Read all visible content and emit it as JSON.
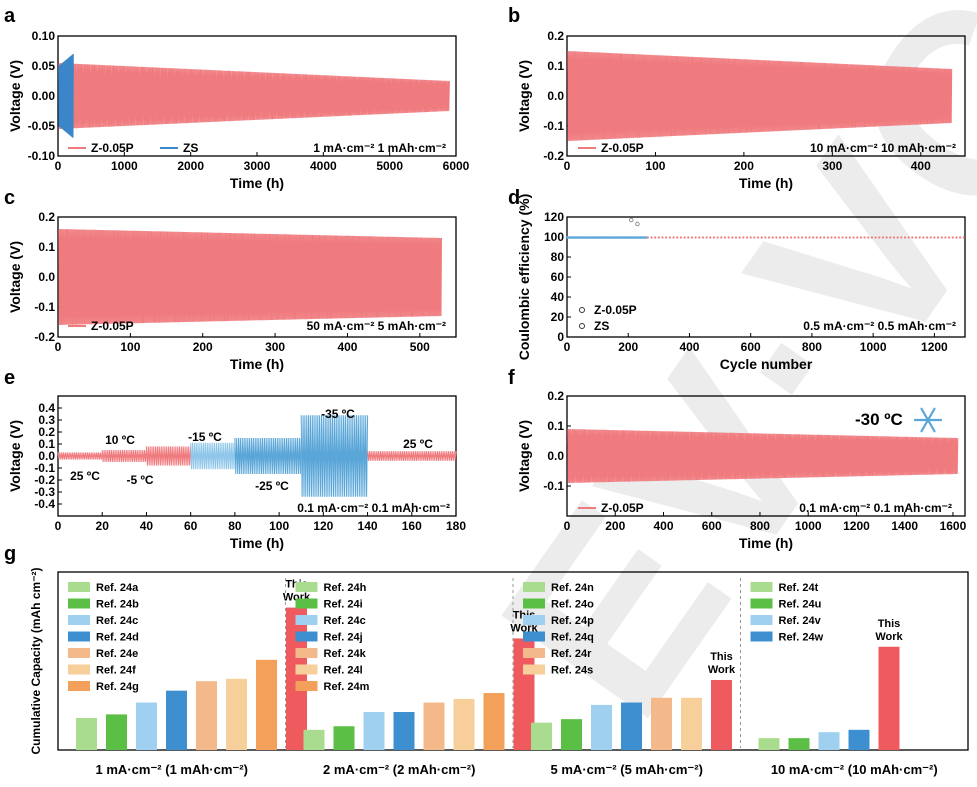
{
  "colors": {
    "red": "#f07b7f",
    "blue": "#5aa6d8",
    "dark_blue": "#3b86c8",
    "black": "#000000"
  },
  "watermark": "EV·VCH",
  "panels": {
    "a": {
      "letter": "a",
      "chart_data": {
        "type": "line",
        "xlabel": "Time (h)",
        "ylabel": "Voltage (V)",
        "xlim": [
          0,
          6000
        ],
        "ylim": [
          -0.1,
          0.1
        ],
        "xticks": [
          "0",
          "1000",
          "2000",
          "3000",
          "4000",
          "5000",
          "6000"
        ],
        "yticks": [
          "-0.10",
          "-0.05",
          "0.00",
          "0.05",
          "0.10"
        ],
        "series": [
          {
            "name": "Z-0.05P",
            "color": "#f07b7f",
            "x_end": 5900,
            "amp_start": 0.055,
            "amp_end": 0.025
          },
          {
            "name": "ZS",
            "color": "#3b86c8",
            "x_end": 230,
            "amp_start": 0.05,
            "amp_end": 0.07
          }
        ],
        "condition": "1 mA·cm⁻² 1 mAh·cm⁻²"
      }
    },
    "b": {
      "letter": "b",
      "chart_data": {
        "type": "line",
        "xlabel": "Time (h)",
        "ylabel": "Voltage (V)",
        "xlim": [
          0,
          450
        ],
        "ylim": [
          -0.2,
          0.2
        ],
        "xticks": [
          "0",
          "100",
          "200",
          "300",
          "400"
        ],
        "yticks": [
          "-0.2",
          "-0.1",
          "0.0",
          "0.1",
          "0.2"
        ],
        "series": [
          {
            "name": "Z-0.05P",
            "color": "#f07b7f",
            "x_end": 435,
            "amp_start": 0.15,
            "amp_end": 0.09
          }
        ],
        "condition": "10 mA·cm⁻² 10 mAh·cm⁻²"
      }
    },
    "c": {
      "letter": "c",
      "chart_data": {
        "type": "line",
        "xlabel": "Time (h)",
        "ylabel": "Voltage (V)",
        "xlim": [
          0,
          550
        ],
        "ylim": [
          -0.2,
          0.2
        ],
        "xticks": [
          "0",
          "100",
          "200",
          "300",
          "400",
          "500"
        ],
        "yticks": [
          "-0.2",
          "-0.1",
          "0.0",
          "0.1",
          "0.2"
        ],
        "series": [
          {
            "name": "Z-0.05P",
            "color": "#f07b7f",
            "x_end": 530,
            "amp_start": 0.16,
            "amp_end": 0.13
          }
        ],
        "condition": "50 mA·cm⁻² 5 mAh·cm⁻²"
      }
    },
    "d": {
      "letter": "d",
      "chart_data": {
        "type": "scatter",
        "xlabel": "Cycle number",
        "ylabel": "Coulombic efficiency (%)",
        "xlim": [
          0,
          1300
        ],
        "ylim": [
          0,
          120
        ],
        "xticks": [
          "0",
          "200",
          "400",
          "600",
          "800",
          "1000",
          "1200"
        ],
        "yticks": [
          "0",
          "20",
          "40",
          "60",
          "80",
          "100",
          "120"
        ],
        "series": [
          {
            "name": "Z-0.05P",
            "color": "#f07b7f",
            "x_end": 1300,
            "value": 99.5
          },
          {
            "name": "ZS",
            "color": "#5aa6d8",
            "x_end": 260,
            "value": 99.5
          }
        ],
        "outliers": [
          {
            "x": 210,
            "y": 117
          },
          {
            "x": 230,
            "y": 113
          }
        ],
        "condition": "0.5 mA·cm⁻² 0.5 mAh·cm⁻²"
      }
    },
    "e": {
      "letter": "e",
      "chart_data": {
        "type": "line",
        "xlabel": "Time (h)",
        "ylabel": "Voltage (V)",
        "xlim": [
          0,
          180
        ],
        "ylim": [
          -0.5,
          0.5
        ],
        "xticks": [
          "0",
          "20",
          "40",
          "60",
          "80",
          "100",
          "120",
          "140",
          "160",
          "180"
        ],
        "yticks": [
          "-0.4",
          "-0.3",
          "-0.2",
          "-0.1",
          "0.0",
          "0.1",
          "0.2",
          "0.3",
          "0.4"
        ],
        "segments": [
          {
            "label": "25 ºC",
            "x0": 0,
            "x1": 20,
            "amp": 0.03,
            "color": "#f07b7f"
          },
          {
            "label": "10 ºC",
            "x0": 20,
            "x1": 40,
            "amp": 0.05,
            "color": "#f07b7f"
          },
          {
            "label": "-5 ºC",
            "x0": 40,
            "x1": 60,
            "amp": 0.08,
            "color": "#f07b7f"
          },
          {
            "label": "-15 ºC",
            "x0": 60,
            "x1": 80,
            "amp": 0.11,
            "color": "#8fc6ea"
          },
          {
            "label": "-25 ºC",
            "x0": 80,
            "x1": 110,
            "amp": 0.15,
            "color": "#5aa6d8"
          },
          {
            "label": "-35 ºC",
            "x0": 110,
            "x1": 140,
            "amp": 0.34,
            "color": "#5aa6d8"
          },
          {
            "label": "25 ºC",
            "x0": 140,
            "x1": 180,
            "amp": 0.04,
            "color": "#f07b7f"
          }
        ],
        "condition": "0.1 mA·cm⁻² 0.1 mAh·cm⁻²"
      }
    },
    "f": {
      "letter": "f",
      "chart_data": {
        "type": "line",
        "xlabel": "Time (h)",
        "ylabel": "Voltage (V)",
        "xlim": [
          0,
          1650
        ],
        "ylim": [
          -0.2,
          0.2
        ],
        "xticks": [
          "0",
          "200",
          "400",
          "600",
          "800",
          "1000",
          "1200",
          "1400",
          "1600"
        ],
        "yticks": [
          "-0.1",
          "0.0",
          "0.1",
          "0.2"
        ],
        "series": [
          {
            "name": "Z-0.05P",
            "color": "#f07b7f",
            "x_end": 1620,
            "amp_start": 0.09,
            "amp_end": 0.06
          }
        ],
        "temperature": "-30 ºC",
        "condition": "0.1 mA·cm⁻² 0.1 mAh·cm⁻²"
      }
    },
    "g": {
      "letter": "g",
      "chart_data": {
        "type": "bar",
        "ylabel": "Cumulative Capacity (mAh cm⁻²)",
        "ylim": [
          0,
          7.5
        ],
        "groups": [
          {
            "label": "1 mA·cm⁻² (1 mAh·cm⁻²)",
            "bars": [
              {
                "name": "Ref. 24a",
                "value": 1.35,
                "color": "#a9dc8e"
              },
              {
                "name": "Ref. 24b",
                "value": 1.5,
                "color": "#5cbf45"
              },
              {
                "name": "Ref. 24c",
                "value": 2.0,
                "color": "#9fd0f0"
              },
              {
                "name": "Ref. 24d",
                "value": 2.5,
                "color": "#3d8fd0"
              },
              {
                "name": "Ref. 24e",
                "value": 2.9,
                "color": "#f4b98a"
              },
              {
                "name": "Ref. 24f",
                "value": 3.0,
                "color": "#f7cf9a"
              },
              {
                "name": "Ref. 24g",
                "value": 3.8,
                "color": "#f2a05a"
              },
              {
                "name": "This Work",
                "value": 6.0,
                "color": "#ef5a5f"
              }
            ]
          },
          {
            "label": "2 mA·cm⁻² (2 mAh·cm⁻²)",
            "bars": [
              {
                "name": "Ref. 24h",
                "value": 0.85,
                "color": "#a9dc8e"
              },
              {
                "name": "Ref. 24i",
                "value": 1.0,
                "color": "#5cbf45"
              },
              {
                "name": "Ref. 24c",
                "value": 1.6,
                "color": "#9fd0f0"
              },
              {
                "name": "Ref. 24j",
                "value": 1.6,
                "color": "#3d8fd0"
              },
              {
                "name": "Ref. 24k",
                "value": 2.0,
                "color": "#f4b98a"
              },
              {
                "name": "Ref. 24l",
                "value": 2.15,
                "color": "#f7cf9a"
              },
              {
                "name": "Ref. 24m",
                "value": 2.4,
                "color": "#f2a05a"
              },
              {
                "name": "This Work",
                "value": 4.7,
                "color": "#ef5a5f"
              }
            ]
          },
          {
            "label": "5 mA·cm⁻² (5 mAh·cm⁻²)",
            "bars": [
              {
                "name": "Ref. 24n",
                "value": 1.15,
                "color": "#a9dc8e"
              },
              {
                "name": "Ref. 24o",
                "value": 1.3,
                "color": "#5cbf45"
              },
              {
                "name": "Ref. 24p",
                "value": 1.9,
                "color": "#9fd0f0"
              },
              {
                "name": "Ref. 24q",
                "value": 2.0,
                "color": "#3d8fd0"
              },
              {
                "name": "Ref. 24r",
                "value": 2.2,
                "color": "#f4b98a"
              },
              {
                "name": "Ref. 24s",
                "value": 2.2,
                "color": "#f7cf9a"
              },
              {
                "name": "This Work",
                "value": 2.95,
                "color": "#ef5a5f"
              }
            ]
          },
          {
            "label": "10 mA·cm⁻² (10 mAh·cm⁻²)",
            "bars": [
              {
                "name": "Ref. 24t",
                "value": 0.5,
                "color": "#a9dc8e"
              },
              {
                "name": "Ref. 24u",
                "value": 0.5,
                "color": "#5cbf45"
              },
              {
                "name": "Ref. 24v",
                "value": 0.75,
                "color": "#9fd0f0"
              },
              {
                "name": "Ref. 24w",
                "value": 0.85,
                "color": "#3d8fd0"
              },
              {
                "name": "This Work",
                "value": 4.35,
                "color": "#ef5a5f"
              }
            ]
          }
        ],
        "this_work_label": [
          "This",
          "Work"
        ]
      }
    }
  }
}
